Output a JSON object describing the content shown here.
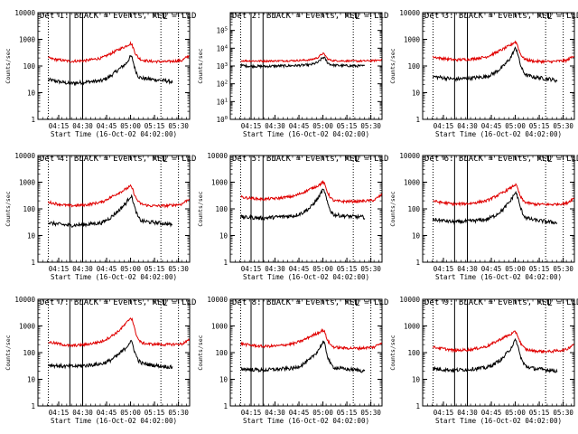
{
  "figure": {
    "xlabel": "Start Time (16-Oct-02 04:02:00)",
    "ylabel": "Counts/sec",
    "x_tick_labels": [
      "04:15",
      "04:30",
      "04:45",
      "05:00",
      "05:15",
      "05:30"
    ],
    "colors": {
      "events": "#000000",
      "lld": "#e00000",
      "axes": "#000000",
      "background": "#ffffff"
    }
  },
  "chart_data": [
    {
      "type": "line",
      "title": "Det 1: BLACK = Events, RED = LLD",
      "x_unit": "minutes after 04:02:00",
      "xlim": [
        0,
        95
      ],
      "ylim": [
        1,
        10000
      ],
      "yscale": "log",
      "y_tick_labels": [
        "1",
        "10",
        "100",
        "1000",
        "10000"
      ],
      "vlines_solid": [
        20,
        28
      ],
      "vlines_dotted": [
        6.5,
        77,
        88
      ],
      "marker_label": "L",
      "marker_x": 77,
      "series": [
        {
          "name": "Events",
          "color": "#000000",
          "x_start": 6.5,
          "x_end": 84.5,
          "x": [
            6.5,
            10,
            20,
            30,
            40,
            45,
            50,
            55,
            57,
            58,
            59,
            61,
            63,
            65,
            70,
            80,
            84.5
          ],
          "y": [
            30,
            28,
            22,
            25,
            28,
            40,
            70,
            120,
            180,
            230,
            200,
            70,
            40,
            35,
            32,
            28,
            25
          ]
        },
        {
          "name": "LLD",
          "color": "#e00000",
          "x_start": 6.5,
          "x_end": 95,
          "x": [
            6.5,
            10,
            20,
            30,
            40,
            45,
            50,
            55,
            57,
            58,
            59,
            61,
            63,
            65,
            70,
            80,
            90,
            95
          ],
          "y": [
            200,
            180,
            150,
            160,
            200,
            280,
            400,
            550,
            650,
            700,
            600,
            300,
            200,
            170,
            150,
            145,
            160,
            250
          ]
        }
      ]
    },
    {
      "type": "line",
      "title": "Det 2: BLACK = Events, RED = LLD",
      "x_unit": "minutes after 04:02:00",
      "xlim": [
        0,
        95
      ],
      "ylim": [
        1,
        1000000
      ],
      "yscale": "log",
      "y_tick_labels": [
        "10^0",
        "10^1",
        "10^2",
        "10^3",
        "10^4",
        "10^5"
      ],
      "vlines_solid": [
        13,
        20.5
      ],
      "vlines_dotted": [
        6.5,
        77,
        88
      ],
      "marker_label": "L",
      "marker_x": 77,
      "series": [
        {
          "name": "Events",
          "color": "#000000",
          "x_start": 6.5,
          "x_end": 84.5,
          "x": [
            6.5,
            10,
            20,
            30,
            40,
            50,
            55,
            57,
            58,
            59,
            61,
            63,
            65,
            70,
            80,
            84.5
          ],
          "y": [
            1100,
            1000,
            950,
            1000,
            1050,
            1150,
            1600,
            2500,
            3000,
            2800,
            1500,
            1200,
            1100,
            1050,
            1000,
            1000
          ]
        },
        {
          "name": "LLD",
          "color": "#e00000",
          "x_start": 6.5,
          "x_end": 95,
          "x": [
            6.5,
            10,
            20,
            30,
            40,
            50,
            55,
            57,
            58,
            59,
            61,
            63,
            65,
            70,
            80,
            90,
            95
          ],
          "y": [
            2000,
            1950,
            1900,
            1950,
            2000,
            2200,
            3000,
            4500,
            5000,
            4500,
            2500,
            2100,
            2000,
            1950,
            1900,
            2000,
            2300
          ]
        }
      ]
    },
    {
      "type": "line",
      "title": "Det 3: BLACK = Events, RED = LLD",
      "x_unit": "minutes after 04:02:00",
      "xlim": [
        0,
        95
      ],
      "ylim": [
        1,
        10000
      ],
      "yscale": "log",
      "y_tick_labels": [
        "1",
        "10",
        "100",
        "1000",
        "10000"
      ],
      "vlines_solid": [
        20,
        28
      ],
      "vlines_dotted": [
        6.5,
        77,
        88
      ],
      "marker_label": "L",
      "marker_x": 77,
      "series": [
        {
          "name": "Events",
          "color": "#000000",
          "x_start": 6.5,
          "x_end": 84.5,
          "x": [
            6.5,
            10,
            20,
            30,
            40,
            45,
            50,
            55,
            57,
            58,
            59,
            61,
            63,
            65,
            70,
            80,
            84.5
          ],
          "y": [
            40,
            38,
            32,
            35,
            40,
            55,
            90,
            200,
            350,
            450,
            400,
            120,
            60,
            45,
            38,
            32,
            28
          ]
        },
        {
          "name": "LLD",
          "color": "#e00000",
          "x_start": 6.5,
          "x_end": 95,
          "x": [
            6.5,
            10,
            20,
            30,
            40,
            45,
            50,
            55,
            57,
            58,
            59,
            61,
            63,
            65,
            70,
            80,
            90,
            95
          ],
          "y": [
            220,
            200,
            170,
            180,
            220,
            300,
            420,
            600,
            750,
            800,
            700,
            300,
            200,
            170,
            150,
            145,
            160,
            250
          ]
        }
      ]
    },
    {
      "type": "line",
      "title": "Det 4: BLACK = Events, RED = LLD",
      "x_unit": "minutes after 04:02:00",
      "xlim": [
        0,
        95
      ],
      "ylim": [
        1,
        10000
      ],
      "yscale": "log",
      "y_tick_labels": [
        "1",
        "10",
        "100",
        "1000",
        "10000"
      ],
      "vlines_solid": [
        20,
        28
      ],
      "vlines_dotted": [
        6.5,
        77,
        88
      ],
      "marker_label": "L",
      "marker_x": 77,
      "series": [
        {
          "name": "Events",
          "color": "#000000",
          "x_start": 6.5,
          "x_end": 84.5,
          "x": [
            6.5,
            10,
            20,
            30,
            40,
            45,
            50,
            55,
            57,
            58,
            59,
            61,
            63,
            65,
            70,
            80,
            84.5
          ],
          "y": [
            30,
            28,
            24,
            26,
            30,
            45,
            80,
            160,
            250,
            300,
            260,
            90,
            45,
            35,
            32,
            28,
            25
          ]
        },
        {
          "name": "LLD",
          "color": "#e00000",
          "x_start": 6.5,
          "x_end": 95,
          "x": [
            6.5,
            10,
            20,
            30,
            40,
            45,
            50,
            55,
            57,
            58,
            59,
            61,
            63,
            65,
            70,
            80,
            90,
            95
          ],
          "y": [
            180,
            160,
            130,
            140,
            180,
            260,
            380,
            550,
            650,
            700,
            600,
            280,
            180,
            150,
            130,
            130,
            150,
            250
          ]
        }
      ]
    },
    {
      "type": "line",
      "title": "Det 5: BLACK = Events, RED = LLD",
      "x_unit": "minutes after 04:02:00",
      "xlim": [
        0,
        95
      ],
      "ylim": [
        1,
        10000
      ],
      "yscale": "log",
      "y_tick_labels": [
        "1",
        "10",
        "100",
        "1000",
        "10000"
      ],
      "vlines_solid": [
        13,
        20.5
      ],
      "vlines_dotted": [
        6.5,
        77,
        88
      ],
      "marker_label": "L",
      "marker_x": 77,
      "series": [
        {
          "name": "Events",
          "color": "#000000",
          "x_start": 6.5,
          "x_end": 84.5,
          "x": [
            6.5,
            10,
            20,
            30,
            40,
            45,
            50,
            55,
            57,
            58,
            59,
            61,
            63,
            65,
            70,
            80,
            84.5
          ],
          "y": [
            50,
            48,
            45,
            50,
            55,
            70,
            110,
            250,
            420,
            500,
            450,
            150,
            80,
            60,
            55,
            50,
            48
          ]
        },
        {
          "name": "LLD",
          "color": "#e00000",
          "x_start": 6.5,
          "x_end": 95,
          "x": [
            6.5,
            10,
            20,
            30,
            40,
            45,
            50,
            55,
            57,
            58,
            59,
            61,
            63,
            65,
            70,
            80,
            90,
            95
          ],
          "y": [
            280,
            260,
            230,
            250,
            300,
            400,
            550,
            750,
            900,
            1000,
            850,
            400,
            250,
            200,
            190,
            190,
            210,
            350
          ]
        }
      ]
    },
    {
      "type": "line",
      "title": "Det 6: BLACK = Events, RED = LLD",
      "x_unit": "minutes after 04:02:00",
      "xlim": [
        0,
        95
      ],
      "ylim": [
        1,
        10000
      ],
      "yscale": "log",
      "y_tick_labels": [
        "1",
        "10",
        "100",
        "1000",
        "10000"
      ],
      "vlines_solid": [
        20,
        28
      ],
      "vlines_dotted": [
        6.5,
        77,
        88
      ],
      "marker_label": "L",
      "marker_x": 77,
      "series": [
        {
          "name": "Events",
          "color": "#000000",
          "x_start": 6.5,
          "x_end": 84.5,
          "x": [
            6.5,
            10,
            20,
            30,
            40,
            45,
            50,
            55,
            57,
            58,
            59,
            61,
            63,
            65,
            70,
            80,
            84.5
          ],
          "y": [
            40,
            38,
            32,
            35,
            40,
            55,
            90,
            200,
            330,
            400,
            350,
            120,
            60,
            45,
            38,
            32,
            30
          ]
        },
        {
          "name": "LLD",
          "color": "#e00000",
          "x_start": 6.5,
          "x_end": 95,
          "x": [
            6.5,
            10,
            20,
            30,
            40,
            45,
            50,
            55,
            57,
            58,
            59,
            61,
            63,
            65,
            70,
            80,
            90,
            95
          ],
          "y": [
            200,
            180,
            150,
            160,
            200,
            280,
            400,
            600,
            750,
            800,
            700,
            300,
            200,
            170,
            150,
            145,
            160,
            260
          ]
        }
      ]
    },
    {
      "type": "line",
      "title": "Det 7: BLACK = Events, RED = LLD",
      "x_unit": "minutes after 04:02:00",
      "xlim": [
        0,
        95
      ],
      "ylim": [
        1,
        10000
      ],
      "yscale": "log",
      "y_tick_labels": [
        "1",
        "10",
        "100",
        "1000",
        "10000"
      ],
      "vlines_solid": [
        20,
        28
      ],
      "vlines_dotted": [
        6.5,
        77,
        88
      ],
      "marker_label": "L",
      "marker_x": 77,
      "series": [
        {
          "name": "Events",
          "color": "#000000",
          "x_start": 6.5,
          "x_end": 84.5,
          "x": [
            6.5,
            10,
            20,
            30,
            40,
            45,
            50,
            55,
            57,
            58,
            59,
            61,
            63,
            65,
            70,
            80,
            84.5
          ],
          "y": [
            35,
            33,
            30,
            33,
            38,
            50,
            80,
            150,
            220,
            260,
            230,
            90,
            50,
            40,
            35,
            30,
            28
          ]
        },
        {
          "name": "LLD",
          "color": "#e00000",
          "x_start": 6.5,
          "x_end": 95,
          "x": [
            6.5,
            10,
            20,
            30,
            40,
            45,
            50,
            55,
            57,
            58,
            59,
            61,
            63,
            65,
            70,
            80,
            90,
            95
          ],
          "y": [
            250,
            230,
            180,
            200,
            260,
            380,
            600,
            1200,
            1700,
            2000,
            1800,
            600,
            300,
            230,
            210,
            200,
            210,
            300
          ]
        }
      ]
    },
    {
      "type": "line",
      "title": "Det 8: BLACK = Events, RED = LLD",
      "x_unit": "minutes after 04:02:00",
      "xlim": [
        0,
        95
      ],
      "ylim": [
        1,
        10000
      ],
      "yscale": "log",
      "y_tick_labels": [
        "1",
        "10",
        "100",
        "1000",
        "10000"
      ],
      "vlines_solid": [
        13,
        20.5
      ],
      "vlines_dotted": [
        6.5,
        77,
        88
      ],
      "marker_label": "L",
      "marker_x": 77,
      "series": [
        {
          "name": "Events",
          "color": "#000000",
          "x_start": 6.5,
          "x_end": 84.5,
          "x": [
            6.5,
            10,
            20,
            30,
            40,
            45,
            50,
            55,
            57,
            58,
            59,
            61,
            63,
            65,
            70,
            80,
            84.5
          ],
          "y": [
            25,
            24,
            22,
            24,
            26,
            35,
            55,
            120,
            200,
            240,
            210,
            70,
            35,
            28,
            25,
            22,
            20
          ]
        },
        {
          "name": "LLD",
          "color": "#e00000",
          "x_start": 6.5,
          "x_end": 95,
          "x": [
            6.5,
            10,
            20,
            30,
            40,
            45,
            50,
            55,
            57,
            58,
            59,
            61,
            63,
            65,
            70,
            80,
            90,
            95
          ],
          "y": [
            220,
            200,
            170,
            180,
            220,
            280,
            400,
            550,
            650,
            700,
            600,
            280,
            190,
            160,
            150,
            145,
            160,
            250
          ]
        }
      ]
    },
    {
      "type": "line",
      "title": "Det 9: BLACK = Events, RED = LLD",
      "x_unit": "minutes after 04:02:00",
      "xlim": [
        0,
        95
      ],
      "ylim": [
        1,
        10000
      ],
      "yscale": "log",
      "y_tick_labels": [
        "1",
        "10",
        "100",
        "1000",
        "10000"
      ],
      "vlines_solid": [
        20,
        28
      ],
      "vlines_dotted": [
        6.5,
        77,
        88
      ],
      "marker_label": "L",
      "marker_x": 77,
      "series": [
        {
          "name": "Events",
          "color": "#000000",
          "x_start": 6.5,
          "x_end": 84.5,
          "x": [
            6.5,
            10,
            20,
            30,
            40,
            45,
            50,
            55,
            57,
            58,
            59,
            61,
            63,
            65,
            70,
            80,
            84.5
          ],
          "y": [
            25,
            24,
            22,
            24,
            27,
            38,
            60,
            140,
            230,
            280,
            240,
            80,
            40,
            30,
            25,
            22,
            20
          ]
        },
        {
          "name": "LLD",
          "color": "#e00000",
          "x_start": 6.5,
          "x_end": 95,
          "x": [
            6.5,
            10,
            20,
            30,
            40,
            45,
            50,
            55,
            57,
            58,
            59,
            61,
            63,
            65,
            70,
            80,
            90,
            95
          ],
          "y": [
            160,
            150,
            120,
            130,
            170,
            240,
            350,
            480,
            560,
            600,
            520,
            250,
            160,
            130,
            115,
            110,
            130,
            220
          ]
        }
      ]
    }
  ]
}
